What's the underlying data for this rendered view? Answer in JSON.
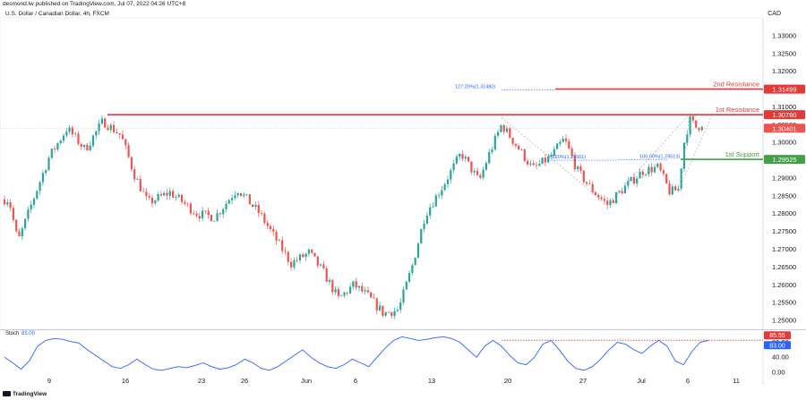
{
  "header": {
    "publisher": "desmond.lw published on TradingView.com, Jul 07, 2022 04:26 UTC+8",
    "symbol": "U.S. Dollar / Canadian Dollar, 4h, FXCM",
    "currency": "CAD"
  },
  "footer": {
    "brand": "TradingView"
  },
  "colors": {
    "up": "#26a69a",
    "down": "#ef5350",
    "resistance": "#e53935",
    "support": "#43a047",
    "fib": "#2962ff",
    "stoch": "#2962ff",
    "stoch_ref": "#e53935"
  },
  "chart_data": [
    {
      "type": "candlestick",
      "title": "U.S. Dollar / Canadian Dollar, 4h, FXCM",
      "y_axis_label": "CAD",
      "ylim": [
        1.2475,
        1.335
      ],
      "y_ticks": [
        "1.33000",
        "1.32500",
        "1.32000",
        "1.31500",
        "1.31000",
        "1.30500",
        "1.30000",
        "1.29500",
        "1.29000",
        "1.28500",
        "1.28000",
        "1.27500",
        "1.27000",
        "1.26500",
        "1.26000",
        "1.25500",
        "1.25000"
      ],
      "x_ticks": [
        "9",
        "16",
        "23",
        "26",
        "Jun",
        "6",
        "13",
        "20",
        "27",
        "Jul",
        "6",
        "11"
      ],
      "price_path": [
        {
          "x": 0,
          "y": 1.284
        },
        {
          "x": 10,
          "y": 1.284
        },
        {
          "x": 20,
          "y": 1.272
        },
        {
          "x": 40,
          "y": 1.286
        },
        {
          "x": 55,
          "y": 1.296
        },
        {
          "x": 75,
          "y": 1.304
        },
        {
          "x": 95,
          "y": 1.298
        },
        {
          "x": 115,
          "y": 1.306
        },
        {
          "x": 135,
          "y": 1.302
        },
        {
          "x": 150,
          "y": 1.291
        },
        {
          "x": 165,
          "y": 1.283
        },
        {
          "x": 190,
          "y": 1.286
        },
        {
          "x": 220,
          "y": 1.28
        },
        {
          "x": 240,
          "y": 1.279
        },
        {
          "x": 265,
          "y": 1.287
        },
        {
          "x": 290,
          "y": 1.28
        },
        {
          "x": 310,
          "y": 1.272
        },
        {
          "x": 325,
          "y": 1.266
        },
        {
          "x": 345,
          "y": 1.269
        },
        {
          "x": 360,
          "y": 1.264
        },
        {
          "x": 378,
          "y": 1.256
        },
        {
          "x": 395,
          "y": 1.26
        },
        {
          "x": 410,
          "y": 1.257
        },
        {
          "x": 428,
          "y": 1.252
        },
        {
          "x": 445,
          "y": 1.253
        },
        {
          "x": 460,
          "y": 1.265
        },
        {
          "x": 475,
          "y": 1.28
        },
        {
          "x": 495,
          "y": 1.288
        },
        {
          "x": 515,
          "y": 1.297
        },
        {
          "x": 535,
          "y": 1.289
        },
        {
          "x": 545,
          "y": 1.296
        },
        {
          "x": 560,
          "y": 1.305
        },
        {
          "x": 580,
          "y": 1.298
        },
        {
          "x": 595,
          "y": 1.2925
        },
        {
          "x": 615,
          "y": 1.296
        },
        {
          "x": 630,
          "y": 1.301
        },
        {
          "x": 645,
          "y": 1.292
        },
        {
          "x": 660,
          "y": 1.287
        },
        {
          "x": 678,
          "y": 1.2825
        },
        {
          "x": 700,
          "y": 1.288
        },
        {
          "x": 718,
          "y": 1.292
        },
        {
          "x": 735,
          "y": 1.293
        },
        {
          "x": 748,
          "y": 1.286
        },
        {
          "x": 758,
          "y": 1.287
        },
        {
          "x": 763,
          "y": 1.299
        },
        {
          "x": 770,
          "y": 1.3065
        },
        {
          "x": 778,
          "y": 1.304
        },
        {
          "x": 786,
          "y": 1.306
        }
      ],
      "x_path_range": [
        0,
        850
      ],
      "levels": [
        {
          "name": "2nd Resistance",
          "value": 1.31499,
          "label": "1.31499",
          "kind": "resistance"
        },
        {
          "name": "1st Resistance",
          "value": 1.3078,
          "label": "1.30780",
          "kind": "resistance"
        },
        {
          "name": "1st Support",
          "value": 1.29525,
          "label": "1.29525",
          "kind": "support"
        }
      ],
      "current_price": {
        "value": 1.30401,
        "label": "1.30401"
      },
      "fib_annotations": [
        {
          "text": "127.20%(1.31480)",
          "value": 1.3148
        },
        {
          "text": "78.60%(1.29501)",
          "value": 1.295
        },
        {
          "text": "100.00%(1.29513)",
          "value": 1.2951
        }
      ]
    },
    {
      "type": "line",
      "title": "Stoch",
      "series_label": "83.00",
      "ylim": [
        -5,
        110
      ],
      "y_ticks": [
        "80.00",
        "40.00",
        "0.00"
      ],
      "value_labels": [
        "85.55",
        "83.00"
      ],
      "series": [
        {
          "name": "Stoch",
          "values": [
            40,
            25,
            8,
            30,
            70,
            85,
            90,
            88,
            82,
            78,
            60,
            45,
            30,
            15,
            10,
            20,
            35,
            20,
            8,
            5,
            10,
            15,
            12,
            18,
            25,
            15,
            8,
            12,
            20,
            35,
            25,
            10,
            5,
            15,
            30,
            45,
            60,
            40,
            25,
            15,
            10,
            20,
            35,
            25,
            15,
            40,
            65,
            85,
            95,
            90,
            85,
            88,
            92,
            95,
            90,
            80,
            60,
            40,
            70,
            85,
            70,
            45,
            25,
            20,
            40,
            75,
            85,
            60,
            30,
            10,
            5,
            15,
            35,
            60,
            80,
            75,
            60,
            50,
            70,
            85,
            70,
            30,
            20,
            55,
            80,
            85
          ]
        }
      ]
    }
  ]
}
